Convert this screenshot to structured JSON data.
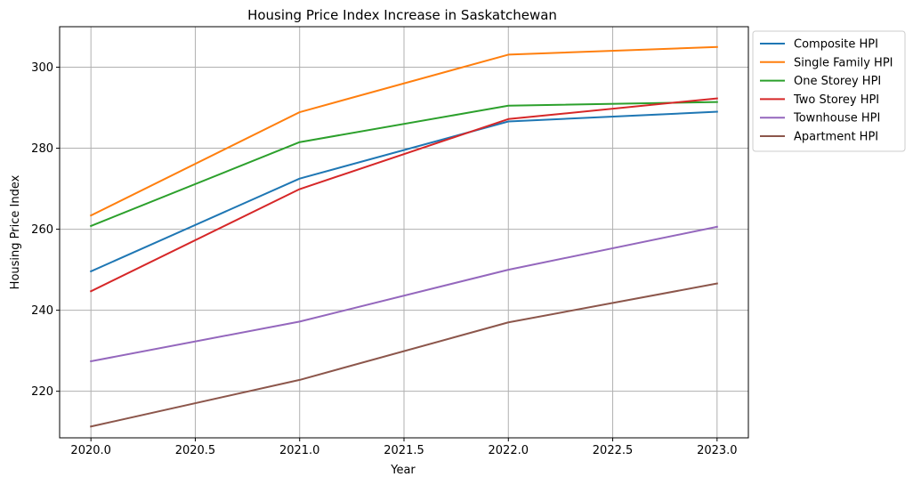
{
  "chart_data": {
    "type": "line",
    "title": "Housing Price Index Increase in Saskatchewan",
    "xlabel": "Year",
    "ylabel": "Housing Price Index",
    "x": [
      2020,
      2021,
      2022,
      2023
    ],
    "xticks": [
      "2020.0",
      "2020.5",
      "2021.0",
      "2021.5",
      "2022.0",
      "2022.5",
      "2023.0"
    ],
    "yticks": [
      "220",
      "240",
      "260",
      "280",
      "300"
    ],
    "xlim": [
      2019.85,
      2023.15
    ],
    "ylim": [
      208.5,
      310
    ],
    "grid": true,
    "legend_position": "outside top-right",
    "series": [
      {
        "name": "Composite HPI",
        "color": "#1f77b4",
        "values": [
          249.6,
          272.5,
          286.6,
          289.0
        ]
      },
      {
        "name": "Single Family HPI",
        "color": "#ff7f0e",
        "values": [
          263.4,
          288.9,
          303.1,
          305.0
        ]
      },
      {
        "name": "One Storey HPI",
        "color": "#2ca02c",
        "values": [
          260.8,
          281.5,
          290.5,
          291.4
        ]
      },
      {
        "name": "Two Storey HPI",
        "color": "#d62728",
        "values": [
          244.7,
          269.9,
          287.2,
          292.3
        ]
      },
      {
        "name": "Townhouse HPI",
        "color": "#9467bd",
        "values": [
          227.4,
          237.2,
          250.0,
          260.6
        ]
      },
      {
        "name": "Apartment HPI",
        "color": "#8c564b",
        "values": [
          211.3,
          222.8,
          237.0,
          246.6
        ]
      }
    ]
  }
}
